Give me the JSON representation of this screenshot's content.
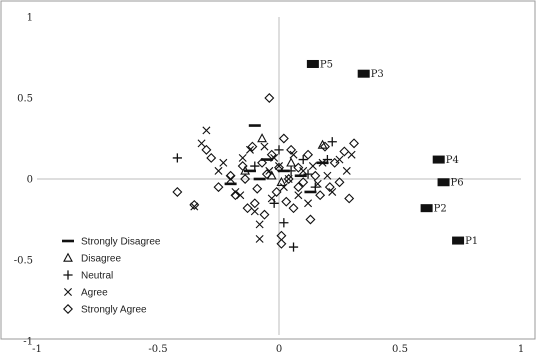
{
  "chart_data": {
    "type": "scatter",
    "title": "",
    "xlabel": "",
    "ylabel": "",
    "xlim": [
      -1,
      1
    ],
    "ylim": [
      -1,
      1
    ],
    "grid": false,
    "legend_position": "bottom-left",
    "x_ticks": [
      -1,
      -0.5,
      0,
      0.5,
      1
    ],
    "y_ticks": [
      1,
      0.5,
      0,
      -0.5,
      -1
    ],
    "x_tick_labels": [
      "-1",
      "-0.5",
      "0",
      "0.5",
      "1"
    ],
    "y_tick_labels": [
      "1",
      "0.5",
      "0",
      "-0.5",
      "-1"
    ],
    "labeled_points": [
      {
        "label": "P1",
        "x": 0.74,
        "y": -0.38
      },
      {
        "label": "P2",
        "x": 0.61,
        "y": -0.18
      },
      {
        "label": "P3",
        "x": 0.35,
        "y": 0.65
      },
      {
        "label": "P4",
        "x": 0.66,
        "y": 0.12
      },
      {
        "label": "P5",
        "x": 0.14,
        "y": 0.71
      },
      {
        "label": "P6",
        "x": 0.68,
        "y": -0.02
      }
    ],
    "series": [
      {
        "name": "Strongly Disagree",
        "marker": "dash",
        "points": [
          [
            -0.1,
            0.33
          ],
          [
            -0.12,
            0.05
          ],
          [
            -0.05,
            0.12
          ],
          [
            0.02,
            0.05
          ],
          [
            0.09,
            0.02
          ],
          [
            0.18,
            0.1
          ],
          [
            -0.2,
            -0.03
          ],
          [
            -0.08,
            0.0
          ],
          [
            0.13,
            -0.08
          ]
        ]
      },
      {
        "name": "Disagree",
        "marker": "triangle",
        "points": [
          [
            -0.07,
            0.25
          ],
          [
            0.18,
            0.21
          ],
          [
            -0.14,
            0.05
          ],
          [
            0.05,
            0.1
          ],
          [
            -0.03,
            0.02
          ],
          [
            0.01,
            -0.02
          ]
        ]
      },
      {
        "name": "Neutral",
        "marker": "plus",
        "points": [
          [
            -0.42,
            0.13
          ],
          [
            0.22,
            0.23
          ],
          [
            0.0,
            0.18
          ],
          [
            0.05,
            0.05
          ],
          [
            0.12,
            0.03
          ],
          [
            0.2,
            0.12
          ],
          [
            0.06,
            -0.42
          ],
          [
            -0.02,
            -0.15
          ],
          [
            0.1,
            0.12
          ],
          [
            -0.1,
            0.08
          ],
          [
            0.15,
            -0.05
          ],
          [
            0.02,
            -0.27
          ]
        ]
      },
      {
        "name": "Agree",
        "marker": "cross",
        "points": [
          [
            -0.3,
            0.3
          ],
          [
            -0.32,
            0.22
          ],
          [
            -0.35,
            -0.17
          ],
          [
            -0.23,
            0.1
          ],
          [
            -0.2,
            0.0
          ],
          [
            -0.18,
            -0.08
          ],
          [
            -0.15,
            0.13
          ],
          [
            -0.1,
            -0.2
          ],
          [
            -0.08,
            -0.28
          ],
          [
            -0.06,
            0.2
          ],
          [
            -0.04,
            0.05
          ],
          [
            -0.03,
            -0.12
          ],
          [
            -0.02,
            0.13
          ],
          [
            0.0,
            0.08
          ],
          [
            0.02,
            -0.05
          ],
          [
            0.04,
            0.0
          ],
          [
            0.06,
            0.15
          ],
          [
            0.08,
            -0.1
          ],
          [
            0.1,
            0.05
          ],
          [
            0.12,
            -0.15
          ],
          [
            0.14,
            0.08
          ],
          [
            0.16,
            -0.03
          ],
          [
            0.18,
            0.1
          ],
          [
            0.2,
            0.02
          ],
          [
            0.22,
            -0.08
          ],
          [
            0.25,
            0.12
          ],
          [
            0.28,
            0.05
          ],
          [
            -0.12,
            0.18
          ],
          [
            -0.08,
            -0.37
          ],
          [
            0.3,
            0.15
          ],
          [
            -0.25,
            0.05
          ],
          [
            -0.16,
            -0.1
          ]
        ]
      },
      {
        "name": "Strongly Agree",
        "marker": "diamond",
        "points": [
          [
            -0.04,
            0.5
          ],
          [
            -0.42,
            -0.08
          ],
          [
            -0.35,
            -0.16
          ],
          [
            -0.3,
            0.18
          ],
          [
            -0.28,
            0.13
          ],
          [
            -0.25,
            -0.05
          ],
          [
            -0.2,
            0.02
          ],
          [
            -0.18,
            -0.1
          ],
          [
            -0.15,
            0.08
          ],
          [
            -0.13,
            -0.18
          ],
          [
            -0.11,
            0.2
          ],
          [
            -0.09,
            -0.06
          ],
          [
            -0.07,
            0.1
          ],
          [
            -0.06,
            -0.22
          ],
          [
            -0.05,
            0.03
          ],
          [
            -0.03,
            0.15
          ],
          [
            -0.01,
            -0.08
          ],
          [
            0.0,
            0.07
          ],
          [
            0.01,
            -0.35
          ],
          [
            0.02,
            0.25
          ],
          [
            0.03,
            -0.14
          ],
          [
            0.04,
            0.0
          ],
          [
            0.05,
            0.18
          ],
          [
            0.06,
            -0.18
          ],
          [
            0.08,
            0.07
          ],
          [
            0.1,
            -0.02
          ],
          [
            0.12,
            0.15
          ],
          [
            0.13,
            -0.25
          ],
          [
            0.15,
            0.02
          ],
          [
            0.17,
            -0.1
          ],
          [
            0.19,
            0.2
          ],
          [
            0.21,
            -0.05
          ],
          [
            0.23,
            0.1
          ],
          [
            0.25,
            -0.02
          ],
          [
            0.27,
            0.17
          ],
          [
            0.29,
            -0.12
          ],
          [
            0.31,
            0.22
          ],
          [
            0.01,
            -0.4
          ],
          [
            -0.1,
            -0.15
          ],
          [
            0.08,
            -0.05
          ],
          [
            -0.14,
            0.0
          ]
        ]
      }
    ]
  }
}
